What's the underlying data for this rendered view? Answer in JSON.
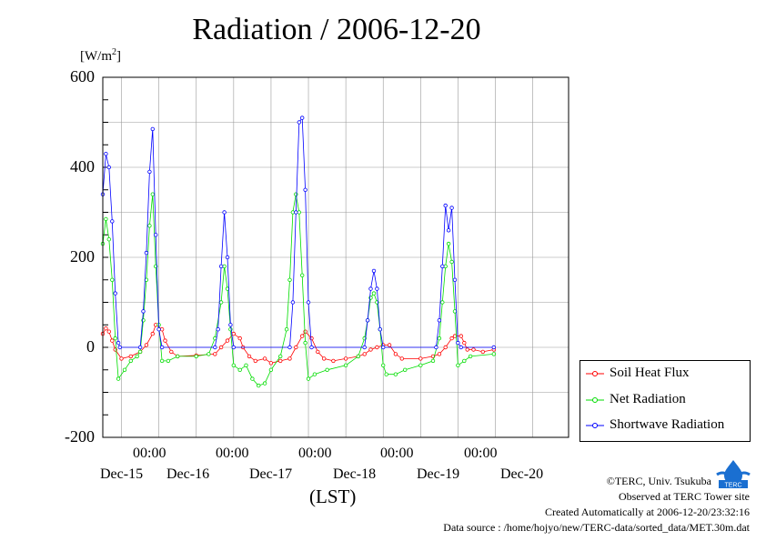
{
  "header": {
    "title": "Radiation / 2006-12-20"
  },
  "axes": {
    "y_unit_prefix": "[W/m",
    "y_unit_sup": "2",
    "y_unit_suffix": "]",
    "x_unit": "(LST)",
    "y_ticks": [
      "600",
      "400",
      "200",
      "0",
      "-200"
    ],
    "x_time_ticks": [
      "00:00",
      "00:00",
      "00:00",
      "00:00",
      "00:00"
    ],
    "x_date_ticks": [
      "Dec-15",
      "Dec-16",
      "Dec-17",
      "Dec-18",
      "Dec-19",
      "Dec-20"
    ]
  },
  "legend": {
    "items": [
      {
        "label": "Soil Heat Flux",
        "color": "#ff0000"
      },
      {
        "label": "Net Radiation",
        "color": "#00dd00"
      },
      {
        "label": "Shortwave Radiation",
        "color": "#0000ff"
      }
    ]
  },
  "credits": {
    "copyright": "©TERC, Univ. Tsukuba",
    "observed": "Observed at TERC Tower site",
    "created": "Created Automatically at 2006-12-20/23:32:16",
    "source": "Data source : /home/hojyo/new/TERC-data/sorted_data/MET.30m.dat"
  },
  "logo": {
    "text": "TERC"
  },
  "chart_data": {
    "type": "line",
    "x_unit": "LST",
    "xlim": [
      "2006-12-14 18:00",
      "2006-12-20 23:30"
    ],
    "ylim": [
      -200,
      600
    ],
    "grid": true,
    "legend_position": "right",
    "series": [
      {
        "name": "Soil Heat Flux",
        "color": "#ff0000",
        "points": [
          [
            "2006-12-14 18:00",
            30
          ],
          [
            "2006-12-14 19:00",
            42
          ],
          [
            "2006-12-14 20:00",
            35
          ],
          [
            "2006-12-14 21:00",
            15
          ],
          [
            "2006-12-14 22:00",
            -5
          ],
          [
            "2006-12-15 00:00",
            -25
          ],
          [
            "2006-12-15 03:00",
            -20
          ],
          [
            "2006-12-15 06:00",
            -10
          ],
          [
            "2006-12-15 08:00",
            5
          ],
          [
            "2006-12-15 10:00",
            30
          ],
          [
            "2006-12-15 11:00",
            50
          ],
          [
            "2006-12-15 13:00",
            40
          ],
          [
            "2006-12-15 14:00",
            15
          ],
          [
            "2006-12-15 16:00",
            -10
          ],
          [
            "2006-12-15 18:00",
            -20
          ],
          [
            "2006-12-16 00:00",
            -18
          ],
          [
            "2006-12-16 06:00",
            -15
          ],
          [
            "2006-12-16 08:00",
            0
          ],
          [
            "2006-12-16 10:00",
            15
          ],
          [
            "2006-12-16 12:00",
            30
          ],
          [
            "2006-12-16 14:00",
            20
          ],
          [
            "2006-12-16 15:00",
            0
          ],
          [
            "2006-12-16 17:00",
            -20
          ],
          [
            "2006-12-16 19:00",
            -30
          ],
          [
            "2006-12-16 22:00",
            -25
          ],
          [
            "2006-12-17 00:00",
            -35
          ],
          [
            "2006-12-17 03:00",
            -30
          ],
          [
            "2006-12-17 06:00",
            -25
          ],
          [
            "2006-12-17 08:00",
            0
          ],
          [
            "2006-12-17 10:00",
            25
          ],
          [
            "2006-12-17 11:00",
            35
          ],
          [
            "2006-12-17 13:00",
            20
          ],
          [
            "2006-12-17 15:00",
            -10
          ],
          [
            "2006-12-17 17:00",
            -25
          ],
          [
            "2006-12-17 20:00",
            -30
          ],
          [
            "2006-12-18 00:00",
            -25
          ],
          [
            "2006-12-18 04:00",
            -20
          ],
          [
            "2006-12-18 06:00",
            -15
          ],
          [
            "2006-12-18 08:00",
            -5
          ],
          [
            "2006-12-18 10:00",
            0
          ],
          [
            "2006-12-18 12:00",
            5
          ],
          [
            "2006-12-18 14:00",
            5
          ],
          [
            "2006-12-18 16:00",
            -15
          ],
          [
            "2006-12-18 18:00",
            -25
          ],
          [
            "2006-12-19 00:00",
            -25
          ],
          [
            "2006-12-19 04:00",
            -20
          ],
          [
            "2006-12-19 06:00",
            -15
          ],
          [
            "2006-12-19 08:00",
            0
          ],
          [
            "2006-12-19 10:00",
            20
          ],
          [
            "2006-12-19 11:00",
            25
          ],
          [
            "2006-12-19 13:00",
            25
          ],
          [
            "2006-12-19 14:00",
            10
          ],
          [
            "2006-12-19 15:00",
            -5
          ],
          [
            "2006-12-19 17:00",
            -5
          ],
          [
            "2006-12-19 20:00",
            -10
          ],
          [
            "2006-12-19 23:30",
            -5
          ]
        ]
      },
      {
        "name": "Net Radiation",
        "color": "#00dd00",
        "points": [
          [
            "2006-12-14 18:00",
            230
          ],
          [
            "2006-12-14 19:00",
            285
          ],
          [
            "2006-12-14 20:00",
            240
          ],
          [
            "2006-12-14 21:00",
            150
          ],
          [
            "2006-12-14 22:00",
            20
          ],
          [
            "2006-12-14 23:00",
            -70
          ],
          [
            "2006-12-15 01:00",
            -50
          ],
          [
            "2006-12-15 03:00",
            -30
          ],
          [
            "2006-12-15 05:00",
            -20
          ],
          [
            "2006-12-15 06:00",
            -10
          ],
          [
            "2006-12-15 07:00",
            60
          ],
          [
            "2006-12-15 08:00",
            150
          ],
          [
            "2006-12-15 09:00",
            270
          ],
          [
            "2006-12-15 10:00",
            340
          ],
          [
            "2006-12-15 11:00",
            180
          ],
          [
            "2006-12-15 12:00",
            50
          ],
          [
            "2006-12-15 13:00",
            -30
          ],
          [
            "2006-12-15 15:00",
            -30
          ],
          [
            "2006-12-15 18:00",
            -20
          ],
          [
            "2006-12-16 00:00",
            -20
          ],
          [
            "2006-12-16 04:00",
            -15
          ],
          [
            "2006-12-16 06:00",
            20
          ],
          [
            "2006-12-16 08:00",
            100
          ],
          [
            "2006-12-16 09:00",
            180
          ],
          [
            "2006-12-16 10:00",
            130
          ],
          [
            "2006-12-16 11:00",
            40
          ],
          [
            "2006-12-16 12:00",
            -40
          ],
          [
            "2006-12-16 14:00",
            -50
          ],
          [
            "2006-12-16 16:00",
            -40
          ],
          [
            "2006-12-16 18:00",
            -70
          ],
          [
            "2006-12-16 20:00",
            -85
          ],
          [
            "2006-12-16 22:00",
            -80
          ],
          [
            "2006-12-17 00:00",
            -50
          ],
          [
            "2006-12-17 03:00",
            -20
          ],
          [
            "2006-12-17 05:00",
            40
          ],
          [
            "2006-12-17 06:00",
            150
          ],
          [
            "2006-12-17 07:00",
            300
          ],
          [
            "2006-12-17 08:00",
            340
          ],
          [
            "2006-12-17 09:00",
            300
          ],
          [
            "2006-12-17 10:00",
            160
          ],
          [
            "2006-12-17 11:00",
            10
          ],
          [
            "2006-12-17 12:00",
            -70
          ],
          [
            "2006-12-17 14:00",
            -60
          ],
          [
            "2006-12-17 18:00",
            -50
          ],
          [
            "2006-12-18 00:00",
            -40
          ],
          [
            "2006-12-18 04:00",
            -20
          ],
          [
            "2006-12-18 06:00",
            20
          ],
          [
            "2006-12-18 07:00",
            60
          ],
          [
            "2006-12-18 08:00",
            110
          ],
          [
            "2006-12-18 09:00",
            120
          ],
          [
            "2006-12-18 10:00",
            100
          ],
          [
            "2006-12-18 11:00",
            40
          ],
          [
            "2006-12-18 12:00",
            -40
          ],
          [
            "2006-12-18 13:00",
            -60
          ],
          [
            "2006-12-18 16:00",
            -60
          ],
          [
            "2006-12-18 19:00",
            -50
          ],
          [
            "2006-12-19 00:00",
            -40
          ],
          [
            "2006-12-19 04:00",
            -30
          ],
          [
            "2006-12-19 06:00",
            20
          ],
          [
            "2006-12-19 07:00",
            100
          ],
          [
            "2006-12-19 08:00",
            180
          ],
          [
            "2006-12-19 09:00",
            230
          ],
          [
            "2006-12-19 10:00",
            190
          ],
          [
            "2006-12-19 11:00",
            80
          ],
          [
            "2006-12-19 12:00",
            -40
          ],
          [
            "2006-12-19 14:00",
            -30
          ],
          [
            "2006-12-19 16:00",
            -20
          ],
          [
            "2006-12-19 23:30",
            -15
          ]
        ]
      },
      {
        "name": "Shortwave Radiation",
        "color": "#0000ff",
        "points": [
          [
            "2006-12-14 18:00",
            340
          ],
          [
            "2006-12-14 19:00",
            430
          ],
          [
            "2006-12-14 20:00",
            400
          ],
          [
            "2006-12-14 21:00",
            280
          ],
          [
            "2006-12-14 22:00",
            120
          ],
          [
            "2006-12-14 23:00",
            10
          ],
          [
            "2006-12-14 23:30",
            0
          ],
          [
            "2006-12-15 06:00",
            0
          ],
          [
            "2006-12-15 07:00",
            80
          ],
          [
            "2006-12-15 08:00",
            210
          ],
          [
            "2006-12-15 09:00",
            390
          ],
          [
            "2006-12-15 10:00",
            485
          ],
          [
            "2006-12-15 11:00",
            250
          ],
          [
            "2006-12-15 12:00",
            40
          ],
          [
            "2006-12-15 13:00",
            0
          ],
          [
            "2006-12-16 06:00",
            0
          ],
          [
            "2006-12-16 07:00",
            40
          ],
          [
            "2006-12-16 08:00",
            180
          ],
          [
            "2006-12-16 09:00",
            300
          ],
          [
            "2006-12-16 10:00",
            200
          ],
          [
            "2006-12-16 11:00",
            50
          ],
          [
            "2006-12-16 12:00",
            0
          ],
          [
            "2006-12-17 06:00",
            0
          ],
          [
            "2006-12-17 07:00",
            100
          ],
          [
            "2006-12-17 08:00",
            300
          ],
          [
            "2006-12-17 09:00",
            500
          ],
          [
            "2006-12-17 10:00",
            510
          ],
          [
            "2006-12-17 11:00",
            350
          ],
          [
            "2006-12-17 12:00",
            100
          ],
          [
            "2006-12-17 13:00",
            0
          ],
          [
            "2006-12-18 06:00",
            0
          ],
          [
            "2006-12-18 07:00",
            60
          ],
          [
            "2006-12-18 08:00",
            130
          ],
          [
            "2006-12-18 09:00",
            170
          ],
          [
            "2006-12-18 10:00",
            130
          ],
          [
            "2006-12-18 11:00",
            40
          ],
          [
            "2006-12-18 12:00",
            0
          ],
          [
            "2006-12-19 05:00",
            0
          ],
          [
            "2006-12-19 06:00",
            60
          ],
          [
            "2006-12-19 07:00",
            180
          ],
          [
            "2006-12-19 08:00",
            315
          ],
          [
            "2006-12-19 09:00",
            260
          ],
          [
            "2006-12-19 10:00",
            310
          ],
          [
            "2006-12-19 11:00",
            150
          ],
          [
            "2006-12-19 12:00",
            10
          ],
          [
            "2006-12-19 13:00",
            0
          ],
          [
            "2006-12-19 23:30",
            0
          ]
        ]
      }
    ]
  }
}
